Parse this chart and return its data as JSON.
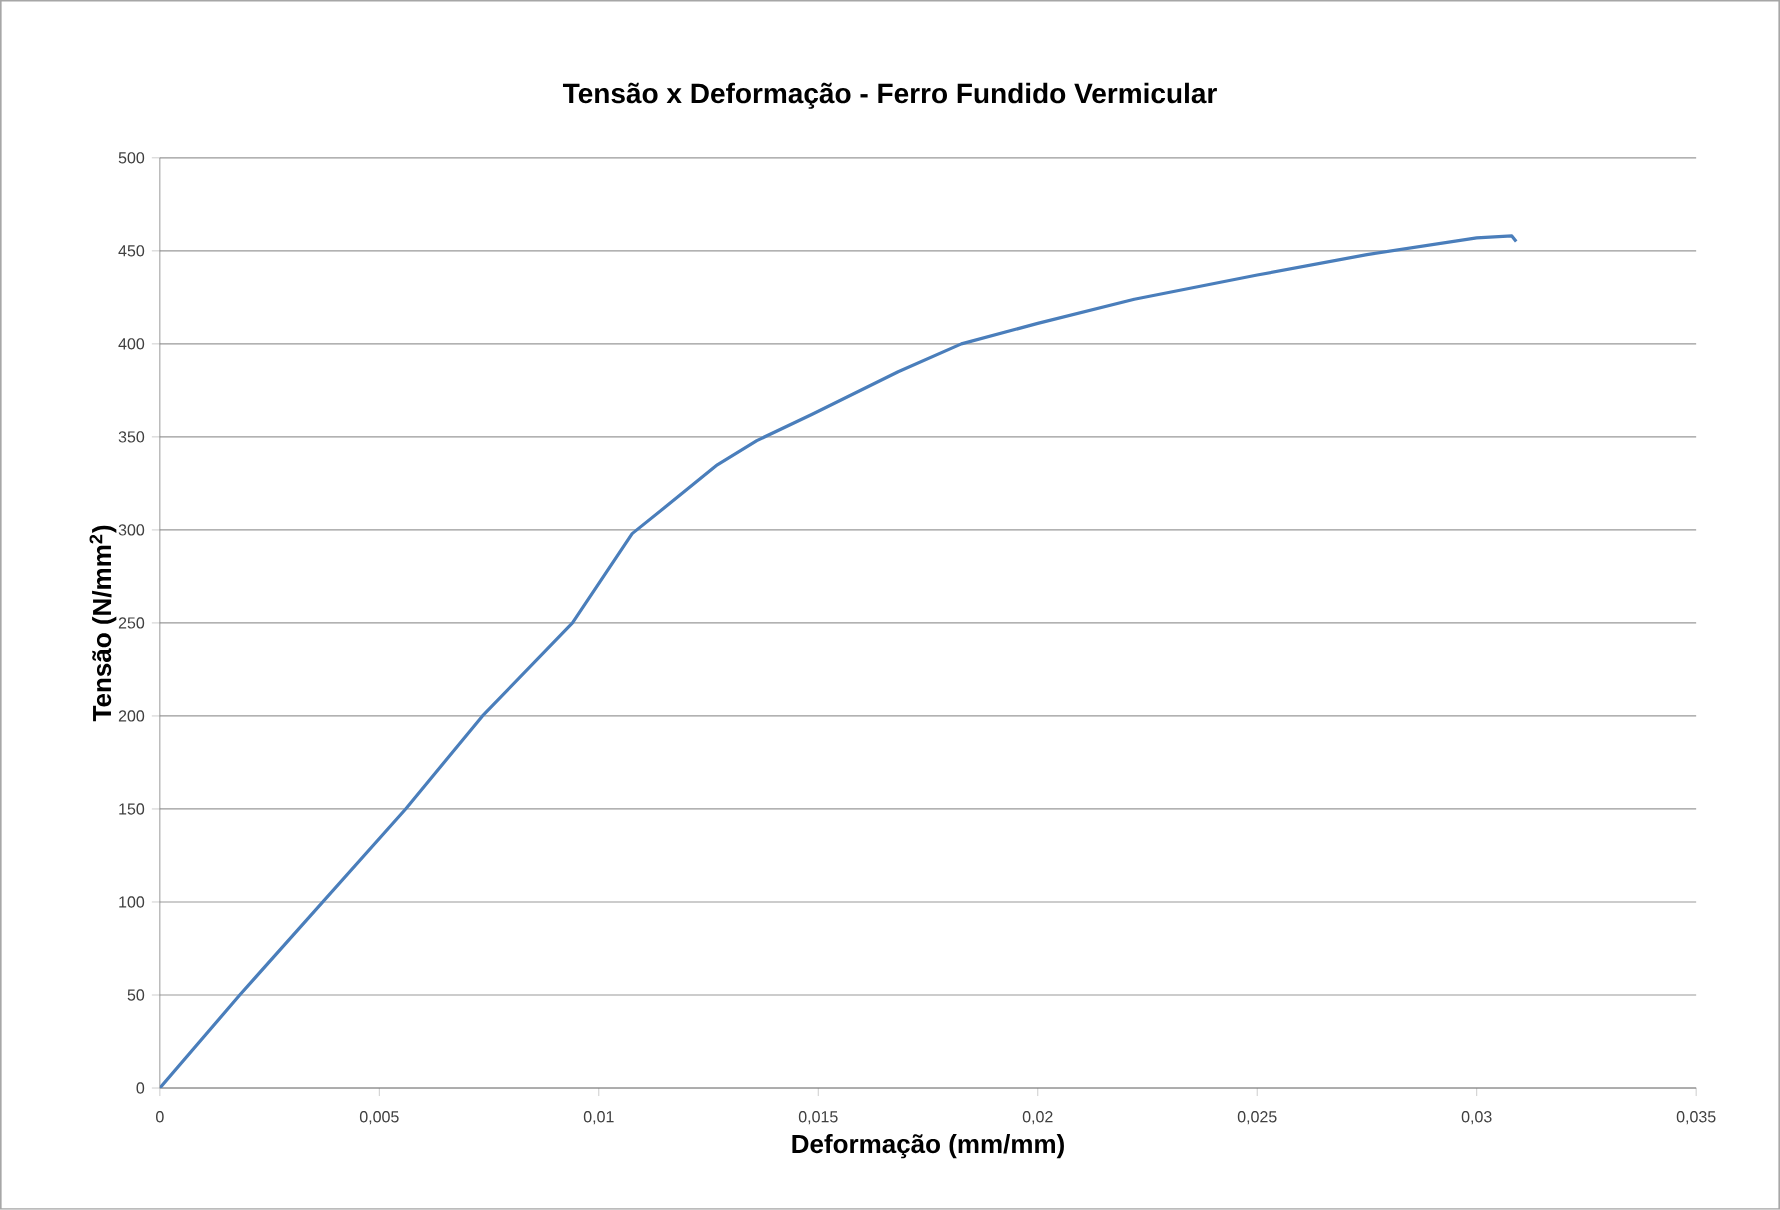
{
  "chart_data": {
    "type": "line",
    "title": "Tensão x Deformação - Ferro Fundido Vermicular",
    "xlabel": "Deformação (mm/mm)",
    "ylabel": "Tensão (N/mm$^{2}$)",
    "x": [
      0,
      0.00182,
      0.0056,
      0.00735,
      0.0094,
      0.01076,
      0.0115,
      0.0127,
      0.0136,
      0.01485,
      0.01682,
      0.01826,
      0.02,
      0.0222,
      0.025,
      0.0275,
      0.03,
      0.0308,
      0.0309
    ],
    "series": [
      {
        "color": "#4a7ebb",
        "values": [
          0,
          50,
          150,
          200,
          250,
          298,
          312,
          335,
          348,
          362,
          385,
          400,
          411,
          424,
          437,
          448,
          457,
          458,
          455
        ]
      }
    ],
    "xlim": [
      0,
      0.035
    ],
    "ylim": [
      0,
      500
    ],
    "xticks": [
      {
        "value": 0,
        "label": "0"
      },
      {
        "value": 0.005,
        "label": "0,005"
      },
      {
        "value": 0.01,
        "label": "0,01"
      },
      {
        "value": 0.015,
        "label": "0,015"
      },
      {
        "value": 0.02,
        "label": "0,02"
      },
      {
        "value": 0.025,
        "label": "0,025"
      },
      {
        "value": 0.03,
        "label": "0,03"
      },
      {
        "value": 0.035,
        "label": "0,035"
      }
    ],
    "yticks": [
      0,
      50,
      100,
      150,
      200,
      250,
      300,
      350,
      400,
      450,
      500
    ],
    "grid": "y",
    "marker": "none",
    "line_style": "solid"
  }
}
